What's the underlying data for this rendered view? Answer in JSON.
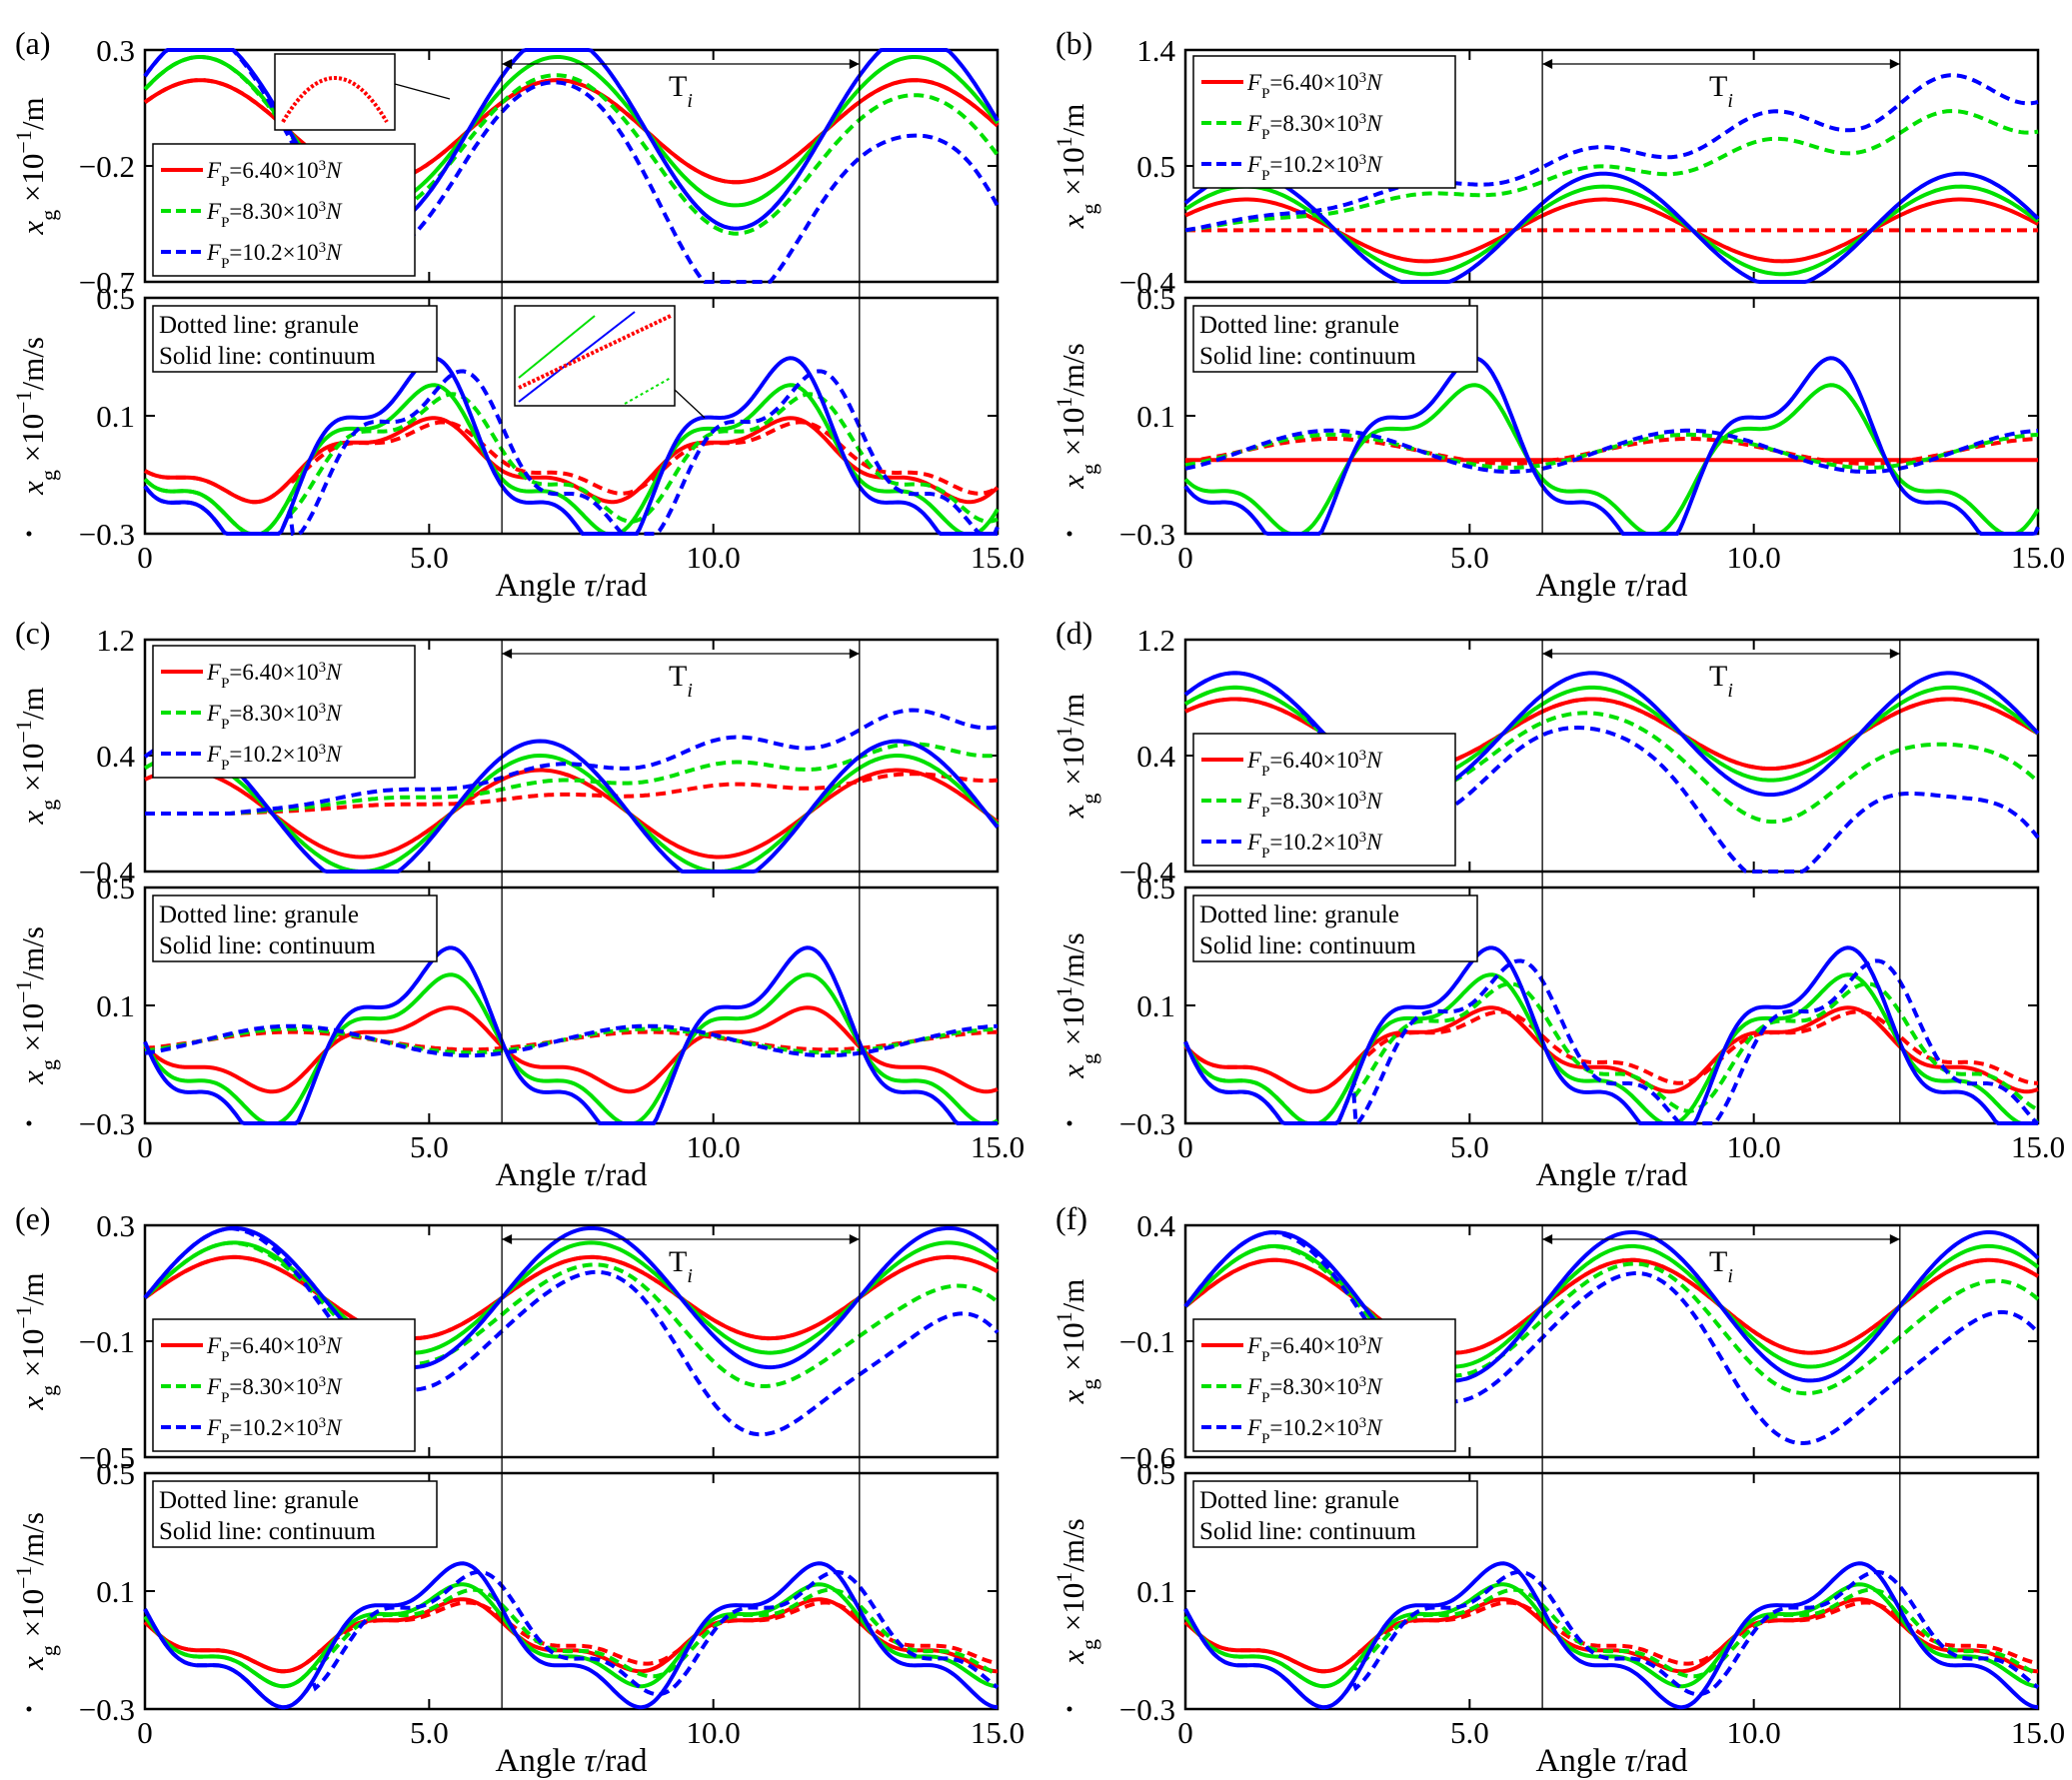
{
  "chart_data": {
    "type": "line",
    "title": "",
    "colors": {
      "red": "#ff0000",
      "green": "#00e000",
      "blue": "#0000ff"
    },
    "series_meta": [
      {
        "key": "fp64",
        "value_label": "=6.40×10",
        "exponent": "3",
        "unit": "N",
        "color": "red"
      },
      {
        "key": "fp83",
        "value_label": "=8.30×10",
        "exponent": "3",
        "unit": "N",
        "color": "green"
      },
      {
        "key": "fp102",
        "value_label": "=10.2×10",
        "exponent": "3",
        "unit": "N",
        "color": "blue"
      }
    ],
    "legend_symbol": {
      "main": "F",
      "sub": "P"
    },
    "notes": [
      "Dotted line: granule",
      "Solid line: continuum"
    ],
    "period_label": {
      "main": "T",
      "sub": "i"
    },
    "period_range": [
      6.28,
      12.57
    ],
    "xlabel": {
      "prefix": "Angle ",
      "var": "τ",
      "suffix": "/rad"
    },
    "xlim": [
      0,
      15
    ],
    "xticks": [
      "0",
      "5.0",
      "10.0",
      "15.0"
    ],
    "panels": [
      {
        "label": "(a)",
        "disp": {
          "ylabel": {
            "base": "x",
            "sub": "g",
            "exp_text": " ×10",
            "sup": "−1",
            "unit": "/m"
          },
          "ylim": [
            -0.7,
            0.3
          ],
          "yticks": [
            "0.3",
            "−0.2",
            "−0.7"
          ],
          "legend_pos": "bottom-left",
          "solid": {
            "amp": [
              0.22,
              0.32,
              0.42
            ],
            "mean": -0.05,
            "phase": 0.6
          },
          "dotted": {
            "amp": [
              0.22,
              0.32,
              0.42
            ],
            "mean": -0.05,
            "phase": 0.6,
            "drift": [
              0.0,
              -0.012,
              -0.032
            ],
            "start": 1.5
          },
          "inset": "arc"
        },
        "vel": {
          "ylim": [
            -0.3,
            0.5
          ],
          "yticks": [
            "0.5",
            "0.1",
            "−0.3"
          ],
          "solid": {
            "amp": [
              0.14,
              0.25,
              0.34
            ],
            "phase": 4.7
          },
          "dotted": {
            "mode": "lag",
            "lag": 0.5,
            "start": 2.6
          },
          "inset": "lines"
        }
      },
      {
        "label": "(b)",
        "disp": {
          "ylabel": {
            "base": "x",
            "sub": "g",
            "exp_text": " ×10",
            "sup": "1",
            "unit": "/m"
          },
          "ylim": [
            -0.4,
            1.4
          ],
          "yticks": [
            "1.4",
            "0.5",
            "−0.4"
          ],
          "legend_pos": "top-left",
          "solid": {
            "amp": [
              0.24,
              0.34,
              0.44
            ],
            "mean": 0.0,
            "phase": 0.5
          },
          "dotted": {
            "amp": [
              0.0,
              0.0,
              0.0
            ],
            "mean": 0.0,
            "phase": 0.5,
            "drift": [
              0.0,
              0.06,
              0.078
            ],
            "start": 0.0
          }
        },
        "vel": {
          "ylim": [
            -0.3,
            0.5
          ],
          "yticks": [
            "0.5",
            "0.1",
            "−0.3"
          ],
          "solid": {
            "amp": [
              0.0,
              0.25,
              0.34
            ],
            "phase": 4.7
          },
          "dotted": {
            "mode": "smooth",
            "amp": 0.07
          }
        }
      },
      {
        "label": "(c)",
        "disp": {
          "ylabel": {
            "base": "x",
            "sub": "g",
            "exp_text": " ×10",
            "sup": "−1",
            "unit": "/m"
          },
          "ylim": [
            -0.4,
            1.2
          ],
          "yticks": [
            "1.2",
            "0.4",
            "−0.4"
          ],
          "legend_pos": "top-left",
          "solid": {
            "amp": [
              0.3,
              0.4,
              0.5
            ],
            "mean": 0.0,
            "phase": 0.9
          },
          "dotted": {
            "amp": [
              0.0,
              0.0,
              0.0
            ],
            "mean": 0.0,
            "phase": 0.9,
            "drift": [
              0.02,
              0.035,
              0.052
            ],
            "start": 1.5
          }
        },
        "vel": {
          "ylim": [
            -0.3,
            0.5
          ],
          "yticks": [
            "0.5",
            "0.1",
            "−0.3"
          ],
          "solid": {
            "amp": [
              0.14,
              0.25,
              0.34
            ],
            "phase": 5.0
          },
          "dotted": {
            "mode": "smooth",
            "amp": 0.05
          }
        }
      },
      {
        "label": "(d)",
        "disp": {
          "ylabel": {
            "base": "x",
            "sub": "g",
            "exp_text": " ×10",
            "sup": "1",
            "unit": "/m"
          },
          "ylim": [
            -0.4,
            1.2
          ],
          "yticks": [
            "1.2",
            "0.4",
            "−0.4"
          ],
          "legend_pos": "bottom-left",
          "solid": {
            "amp": [
              0.24,
              0.32,
              0.42
            ],
            "mean": 0.55,
            "phase": 0.7
          },
          "dotted": {
            "amp": [
              0.24,
              0.32,
              0.42
            ],
            "mean": 0.55,
            "phase": 0.7,
            "drift": [
              0.0,
              -0.03,
              -0.065
            ],
            "start": 2.0
          }
        },
        "vel": {
          "ylim": [
            -0.3,
            0.5
          ],
          "yticks": [
            "0.5",
            "0.1",
            "−0.3"
          ],
          "solid": {
            "amp": [
              0.14,
              0.25,
              0.34
            ],
            "phase": 5.0
          },
          "dotted": {
            "mode": "lag",
            "lag": 0.5,
            "start": 3.0
          }
        }
      },
      {
        "label": "(e)",
        "disp": {
          "ylabel": {
            "base": "x",
            "sub": "g",
            "exp_text": " ×10",
            "sup": "−1",
            "unit": "/m"
          },
          "ylim": [
            -0.5,
            0.3
          ],
          "yticks": [
            "0.3",
            "−0.1",
            "−0.5"
          ],
          "legend_pos": "bottom-left",
          "solid": {
            "amp": [
              0.14,
              0.19,
              0.24
            ],
            "mean": 0.05,
            "phase": 0.0
          },
          "dotted": {
            "amp": [
              0.14,
              0.19,
              0.24
            ],
            "mean": 0.05,
            "phase": 0.0,
            "drift": [
              0.0,
              -0.012,
              -0.024
            ],
            "start": 1.5
          }
        },
        "vel": {
          "ylim": [
            -0.3,
            0.5
          ],
          "yticks": [
            "0.5",
            "0.1",
            "−0.3"
          ],
          "solid": {
            "amp": [
              0.12,
              0.17,
              0.24
            ],
            "phase": 5.2
          },
          "dotted": {
            "mode": "lag",
            "lag": 0.3,
            "start": 3.0
          }
        }
      },
      {
        "label": "(f)",
        "disp": {
          "ylabel": {
            "base": "x",
            "sub": "g",
            "exp_text": " ×10",
            "sup": "1",
            "unit": "/m"
          },
          "ylim": [
            -0.6,
            0.4
          ],
          "yticks": [
            "0.4",
            "−0.1",
            "−0.6"
          ],
          "legend_pos": "bottom-left",
          "solid": {
            "amp": [
              0.2,
              0.26,
              0.32
            ],
            "mean": 0.05,
            "phase": 0.0
          },
          "dotted": {
            "amp": [
              0.2,
              0.26,
              0.32
            ],
            "mean": 0.05,
            "phase": 0.0,
            "drift": [
              0.0,
              -0.012,
              -0.028
            ],
            "start": 1.5
          }
        },
        "vel": {
          "ylim": [
            -0.3,
            0.5
          ],
          "yticks": [
            "0.5",
            "0.1",
            "−0.3"
          ],
          "solid": {
            "amp": [
              0.12,
              0.17,
              0.24
            ],
            "phase": 5.2
          },
          "dotted": {
            "mode": "lag",
            "lag": 0.3,
            "start": 3.0
          }
        }
      }
    ]
  }
}
